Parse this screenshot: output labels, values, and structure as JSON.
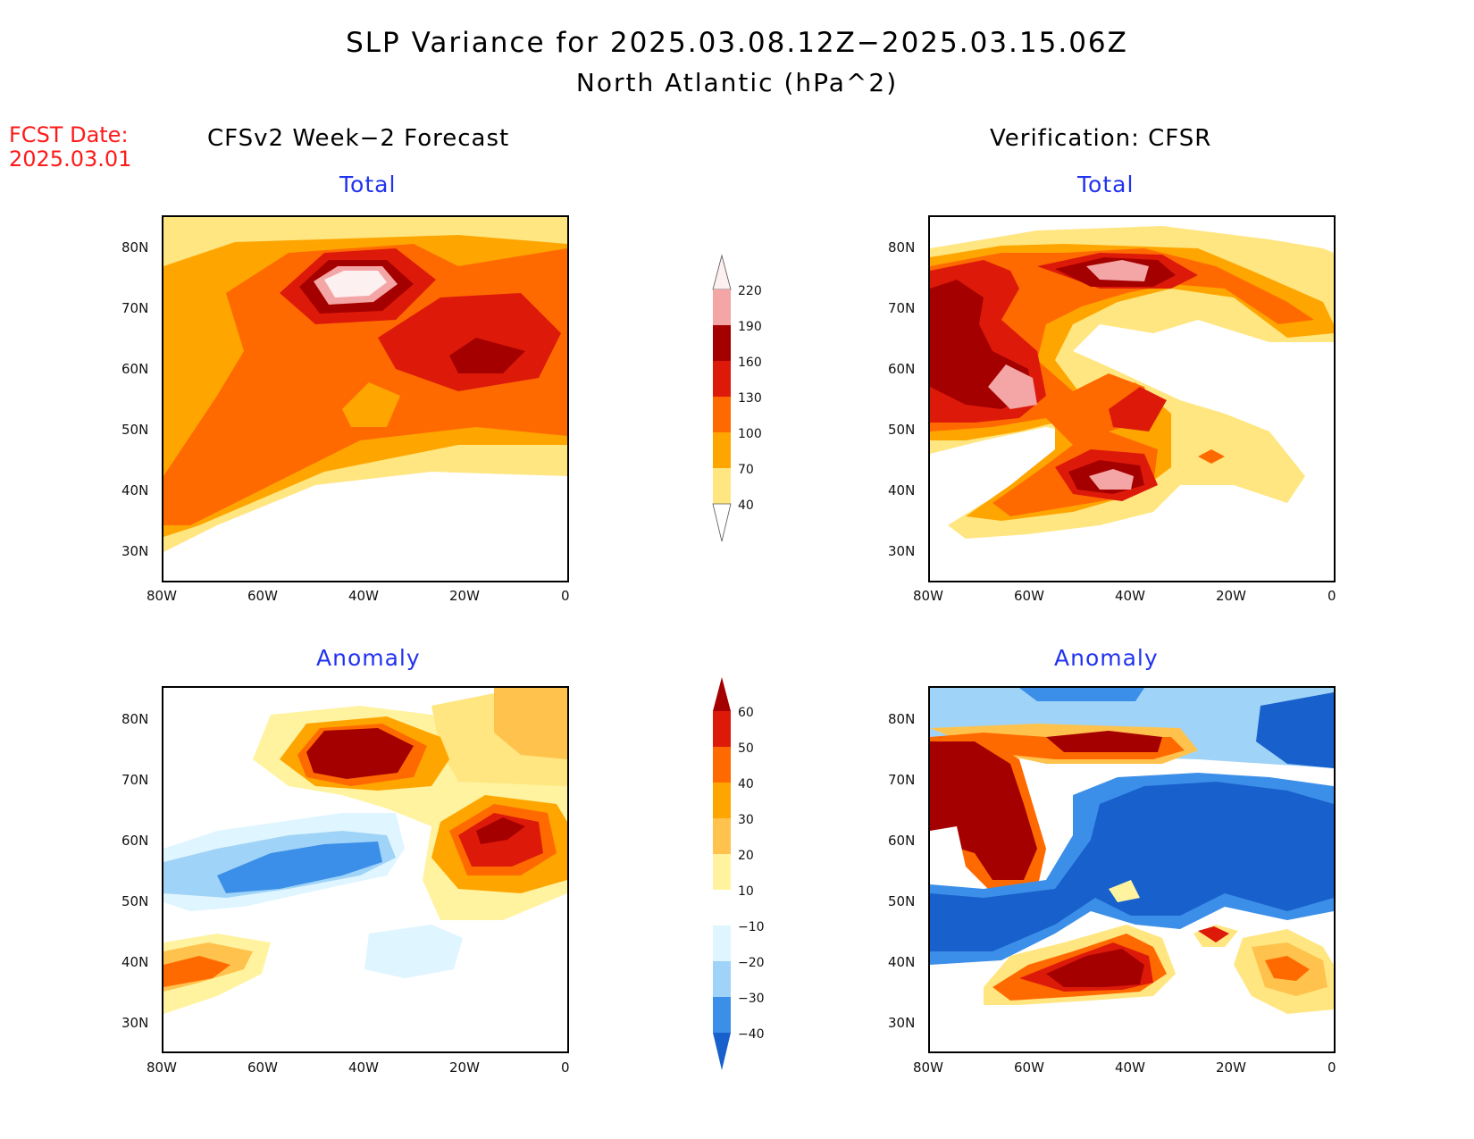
{
  "title": {
    "line1": "SLP Variance for 2025.03.08.12Z−2025.03.15.06Z",
    "line2": "North Atlantic (hPa^2)"
  },
  "forecast_date": {
    "label": "FCST Date:",
    "value": "2025.03.01"
  },
  "columns": {
    "left": "CFSv2 Week−2 Forecast",
    "right": "Verification: CFSR"
  },
  "subtitles": {
    "total": "Total",
    "anomaly": "Anomaly"
  },
  "axes": {
    "lat_ticks": [
      "80N",
      "70N",
      "60N",
      "50N",
      "40N",
      "30N"
    ],
    "lon_ticks": [
      "80W",
      "60W",
      "40W",
      "20W",
      "0"
    ]
  },
  "colorbar_total": {
    "labels": [
      "220",
      "190",
      "160",
      "130",
      "100",
      "70",
      "40"
    ],
    "colors": [
      "#fdf0f0",
      "#f4a6a6",
      "#a50000",
      "#dd1a0a",
      "#ff6a00",
      "#ffa500",
      "#ffe680"
    ]
  },
  "colorbar_anomaly": {
    "labels": [
      "60",
      "50",
      "40",
      "30",
      "20",
      "10",
      "−10",
      "−20",
      "−30",
      "−40"
    ],
    "colors_warm": [
      "#a50000",
      "#dd1a0a",
      "#ff6a00",
      "#ffa500",
      "#ffc24d",
      "#fff3a0"
    ],
    "colors_cool": [
      "#ffffff",
      "#dff5ff",
      "#9fd3f7",
      "#3c8fe8",
      "#1860cc"
    ]
  }
}
